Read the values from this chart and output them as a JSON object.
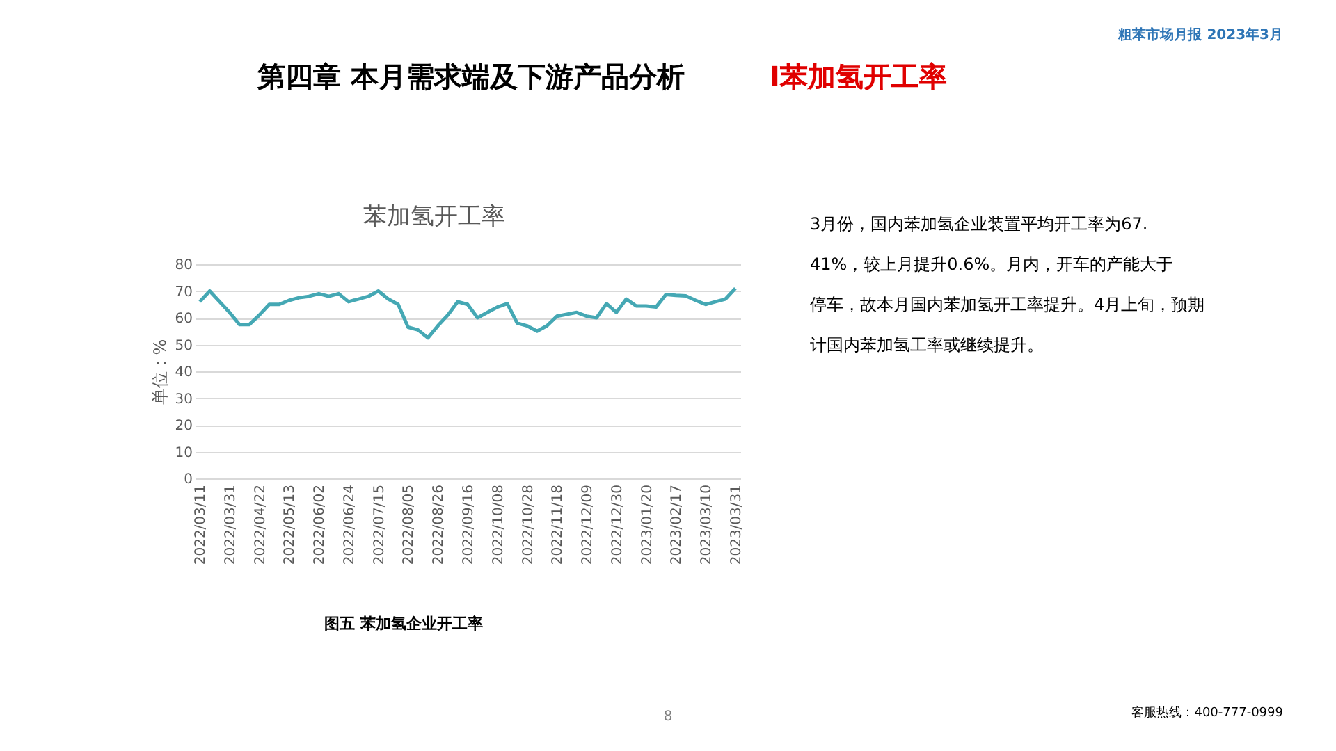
{
  "chart_data": {
    "type": "line",
    "title": "苯加氢开工率",
    "ylabel": "单位：%",
    "categories": [
      "2022/03/11",
      null,
      null,
      "2022/03/31",
      null,
      null,
      "2022/04/22",
      null,
      null,
      "2022/05/13",
      null,
      null,
      "2022/06/02",
      null,
      null,
      "2022/06/24",
      null,
      null,
      "2022/07/15",
      null,
      null,
      "2022/08/05",
      null,
      null,
      "2022/08/26",
      null,
      null,
      "2022/09/16",
      null,
      null,
      "2022/10/08",
      null,
      null,
      "2022/10/28",
      null,
      null,
      "2022/11/18",
      null,
      null,
      "2022/12/09",
      null,
      null,
      "2022/12/30",
      null,
      null,
      "2023/01/20",
      null,
      null,
      "2023/02/17",
      null,
      null,
      "2023/03/10",
      null,
      null,
      "2023/03/31"
    ],
    "series": [
      {
        "color": "#45a8b4",
        "values": [
          66,
          70,
          66,
          62,
          57.5,
          57.5,
          61,
          65,
          65,
          66.5,
          67.5,
          68,
          69,
          68,
          69,
          66,
          67,
          68,
          70,
          67,
          65,
          56.5,
          55.5,
          52.5,
          57,
          61,
          66,
          65,
          60,
          62,
          64,
          65.3,
          58,
          57,
          55,
          57,
          60.6,
          61.3,
          62,
          60.6,
          60,
          65.3,
          62,
          67,
          64.4,
          64.4,
          64,
          68.7,
          68.4,
          68.2,
          66.5,
          65,
          66,
          67,
          71
        ]
      }
    ],
    "ylim": [
      0,
      80
    ],
    "yticks": [
      0,
      10,
      20,
      30,
      40,
      50,
      60,
      70,
      80
    ],
    "grid": "y",
    "legend": false,
    "marker": "none",
    "line_style": "solid",
    "annotations": [
      "第四章 本月需求端及下游产品分析",
      "I苯加氢开工率",
      "粗苯市场月报   2023年3月",
      "图五 苯加氢企业开工率",
      "3月份，国内苯加氢企业装置平均开工率为67.41%，较上月提升0.6%。月内，开车的产能大于停车，故本月国内苯加氢开工率提升。4月上旬，预期计国内苯加氢工率或继续提升。",
      "8",
      "客服热线：400-777-0999"
    ]
  }
}
